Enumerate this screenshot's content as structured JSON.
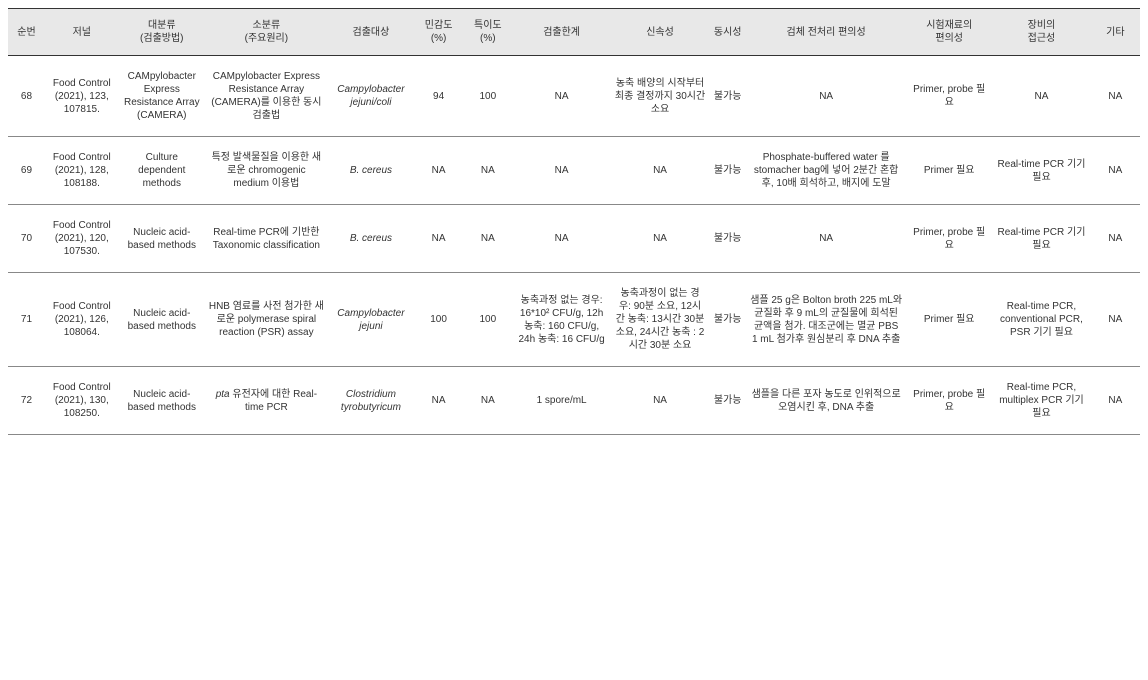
{
  "columns": [
    {
      "key": "num",
      "label": "순번",
      "class": "col-num"
    },
    {
      "key": "journal",
      "label": "저널",
      "class": "col-journal"
    },
    {
      "key": "method_major",
      "label": "대분류\n(검출방법)",
      "class": "col-method-major"
    },
    {
      "key": "method_minor",
      "label": "소분류\n(주요원리)",
      "class": "col-method-minor"
    },
    {
      "key": "target",
      "label": "검출대상",
      "class": "col-target"
    },
    {
      "key": "sensitivity",
      "label": "민감도\n(%)",
      "class": "col-sens"
    },
    {
      "key": "specificity",
      "label": "특이도\n(%)",
      "class": "col-spec"
    },
    {
      "key": "detection_limit",
      "label": "검출한계",
      "class": "col-limit"
    },
    {
      "key": "speed",
      "label": "신속성",
      "class": "col-speed"
    },
    {
      "key": "simultaneity",
      "label": "동시성",
      "class": "col-simul"
    },
    {
      "key": "pretreatment",
      "label": "검체 전처리 편의성",
      "class": "col-pretreat"
    },
    {
      "key": "reagent",
      "label": "시험재료의\n편의성",
      "class": "col-reagent"
    },
    {
      "key": "equipment",
      "label": "장비의\n접근성",
      "class": "col-equip"
    },
    {
      "key": "other",
      "label": "기타",
      "class": "col-other"
    }
  ],
  "rows": [
    {
      "num": "68",
      "journal": "Food Control (2021), 123, 107815.",
      "method_major": "CAMpylobacter Express Resistance Array (CAMERA)",
      "method_minor": "CAMpylobacter Express Resistance Array (CAMERA)를 이용한 동시 검출법",
      "target": "Campylobacter jejuni/coli",
      "target_italic": true,
      "sensitivity": "94",
      "specificity": "100",
      "detection_limit": "NA",
      "speed": "농축 배양의 시작부터 최종 결정까지 30시간 소요",
      "simultaneity": "불가능",
      "pretreatment": "NA",
      "reagent": "Primer, probe 필요",
      "equipment": "NA",
      "other": "NA"
    },
    {
      "num": "69",
      "journal": "Food Control (2021), 128, 108188.",
      "method_major": "Culture dependent methods",
      "method_minor": "특정 발색물질을 이용한 새로운 chromogenic medium 이용법",
      "target": "B. cereus",
      "target_italic": true,
      "sensitivity": "NA",
      "specificity": "NA",
      "detection_limit": "NA",
      "speed": "NA",
      "simultaneity": "불가능",
      "pretreatment": "Phosphate-buffered water 를 stomacher bag에 넣어 2분간 혼합 후, 10배 희석하고, 배지에 도말",
      "reagent": "Primer 필요",
      "equipment": "Real-time PCR 기기 필요",
      "other": "NA"
    },
    {
      "num": "70",
      "journal": "Food Control (2021), 120, 107530.",
      "method_major": "Nucleic acid-based methods",
      "method_minor": "Real-time PCR에 기반한 Taxonomic classification",
      "target": "B. cereus",
      "target_italic": true,
      "sensitivity": "NA",
      "specificity": "NA",
      "detection_limit": "NA",
      "speed": "NA",
      "simultaneity": "불가능",
      "pretreatment": "NA",
      "reagent": "Primer, probe 필요",
      "equipment": "Real-time PCR 기기 필요",
      "other": "NA"
    },
    {
      "num": "71",
      "journal": "Food Control (2021), 126, 108064.",
      "method_major": "Nucleic acid-based methods",
      "method_minor": "HNB 염료를 사전 첨가한 새로운 polymerase spiral reaction (PSR) assay",
      "target": "Campylobacter jejuni",
      "target_italic": true,
      "sensitivity": "100",
      "specificity": "100",
      "detection_limit": "농축과정 없는 경우: 16*10² CFU/g, 12h 농축: 160 CFU/g, 24h 농축: 16 CFU/g",
      "speed": "농축과정이 없는 경우: 90분 소요, 12시간 농축: 13시간 30분 소요, 24시간 농축 : 2시간 30분 소요",
      "simultaneity": "불가능",
      "pretreatment": "샘플 25 g은 Bolton broth 225 mL와 균질화 후 9 mL의 균질물에 희석된 균액을 첨가. 대조군에는 멸균 PBS 1 mL 첨가후 원심분리 후 DNA 추출",
      "reagent": "Primer 필요",
      "equipment": "Real-time PCR, conventional PCR, PSR 기기 필요",
      "other": "NA"
    },
    {
      "num": "72",
      "journal": "Food Control (2021), 130, 108250.",
      "method_major": "Nucleic acid-based methods",
      "method_minor": "pta 유전자에 대한 Real-time PCR",
      "method_minor_partial_italic": "pta",
      "target": "Clostridium tyrobutyricum",
      "target_italic": true,
      "sensitivity": "NA",
      "specificity": "NA",
      "detection_limit": "1 spore/mL",
      "speed": "NA",
      "simultaneity": "불가능",
      "pretreatment": "샘플을 다른 포자 농도로 인위적으로 오염시킨 후, DNA 추출",
      "reagent": "Primer, probe 필요",
      "equipment": "Real-time PCR, multiplex PCR 기기 필요",
      "other": "NA"
    }
  ],
  "styling": {
    "header_bg": "#e8e8e8",
    "header_border": "#333333",
    "row_border": "#888888",
    "text_color": "#333333",
    "background": "#ffffff",
    "font_size_base": 10
  }
}
